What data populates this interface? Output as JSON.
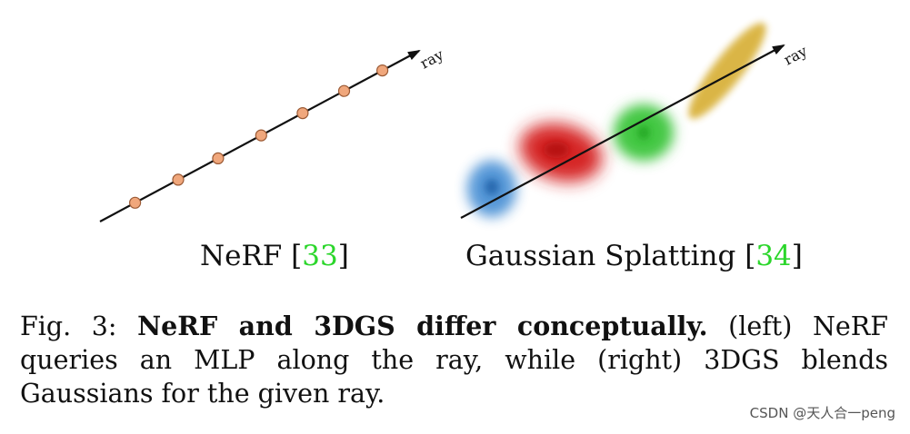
{
  "left_panel": {
    "ray_label": "ray",
    "title": "NeRF [",
    "citation": "33",
    "title_end": "]",
    "sample_count": 7,
    "point_color": "#f0a77c",
    "point_stroke": "#9b5a35"
  },
  "right_panel": {
    "ray_label": "ray",
    "title": "Gaussian Splatting [",
    "citation": "34",
    "title_end": "]",
    "gaussians": [
      {
        "name": "blue-gaussian",
        "color": "#3d84c8"
      },
      {
        "name": "red-gaussian",
        "color": "#d62525"
      },
      {
        "name": "green-gaussian",
        "color": "#38c038"
      },
      {
        "name": "yellow-gaussian",
        "color": "#d7b33e"
      }
    ]
  },
  "caption": {
    "prefix": "Fig. 3: ",
    "bold": "NeRF and 3DGS differ conceptually.",
    "rest": " (left) NeRF queries an MLP along the ray, while (right) 3DGS blends Gaussians for the given ray."
  },
  "watermark": "CSDN @天人合一peng"
}
